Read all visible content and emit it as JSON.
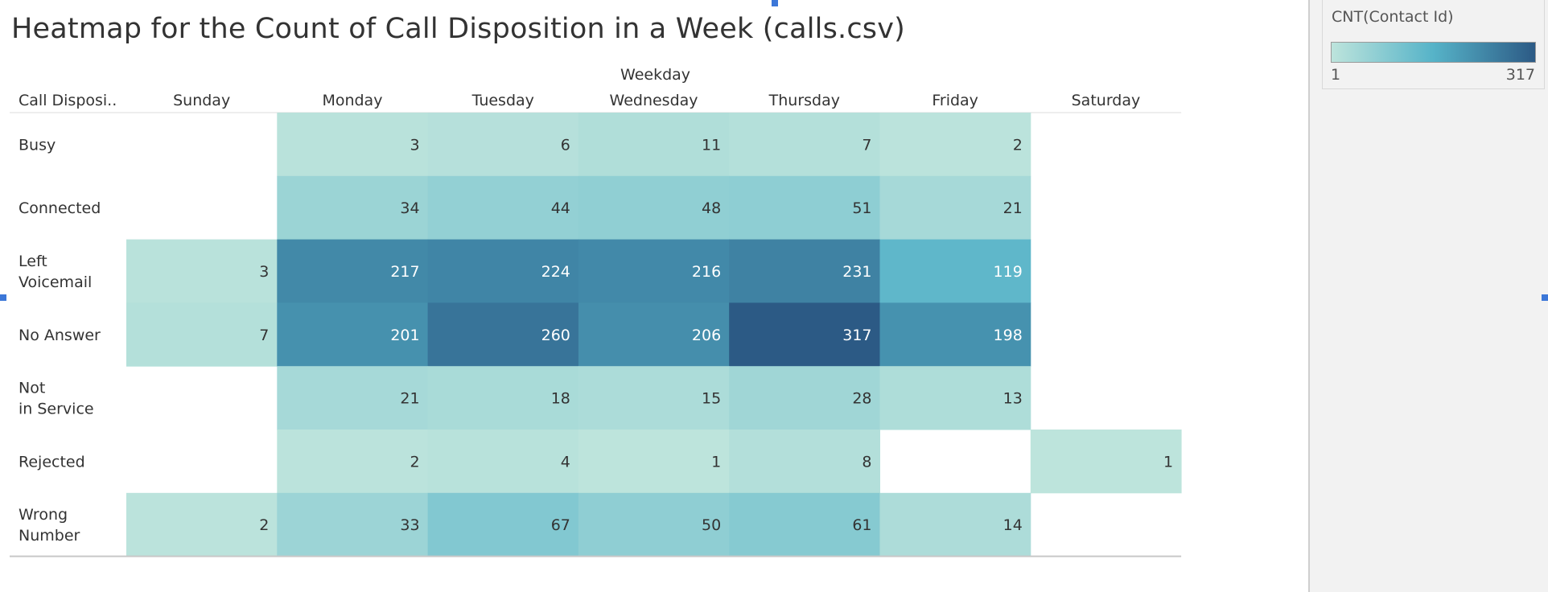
{
  "title": "Heatmap for the Count of Call Disposition in a Week (calls.csv)",
  "legend": {
    "title": "CNT(Contact Id)",
    "min_label": "1",
    "max_label": "317",
    "colors": [
      "#bde4dc",
      "#56b3c8",
      "#2c5a85"
    ]
  },
  "chart_data": {
    "type": "heatmap",
    "title": "Heatmap for the Count of Call Disposition in a Week (calls.csv)",
    "x_group_label": "Weekday",
    "row_header": "Call Disposi..",
    "columns": [
      "Sunday",
      "Monday",
      "Tuesday",
      "Wednesday",
      "Thursday",
      "Friday",
      "Saturday"
    ],
    "rows": [
      "Busy",
      "Connected",
      "Left Voicemail",
      "No Answer",
      "Not in Service",
      "Rejected",
      "Wrong Number"
    ],
    "values": [
      [
        null,
        3,
        6,
        11,
        7,
        2,
        null
      ],
      [
        null,
        34,
        44,
        48,
        51,
        21,
        null
      ],
      [
        3,
        217,
        224,
        216,
        231,
        119,
        null
      ],
      [
        7,
        201,
        260,
        206,
        317,
        198,
        null
      ],
      [
        null,
        21,
        18,
        15,
        28,
        13,
        null
      ],
      [
        null,
        2,
        4,
        1,
        8,
        null,
        1
      ],
      [
        2,
        33,
        67,
        50,
        61,
        14,
        null
      ]
    ],
    "color_scale": {
      "min": 1,
      "max": 317
    }
  }
}
